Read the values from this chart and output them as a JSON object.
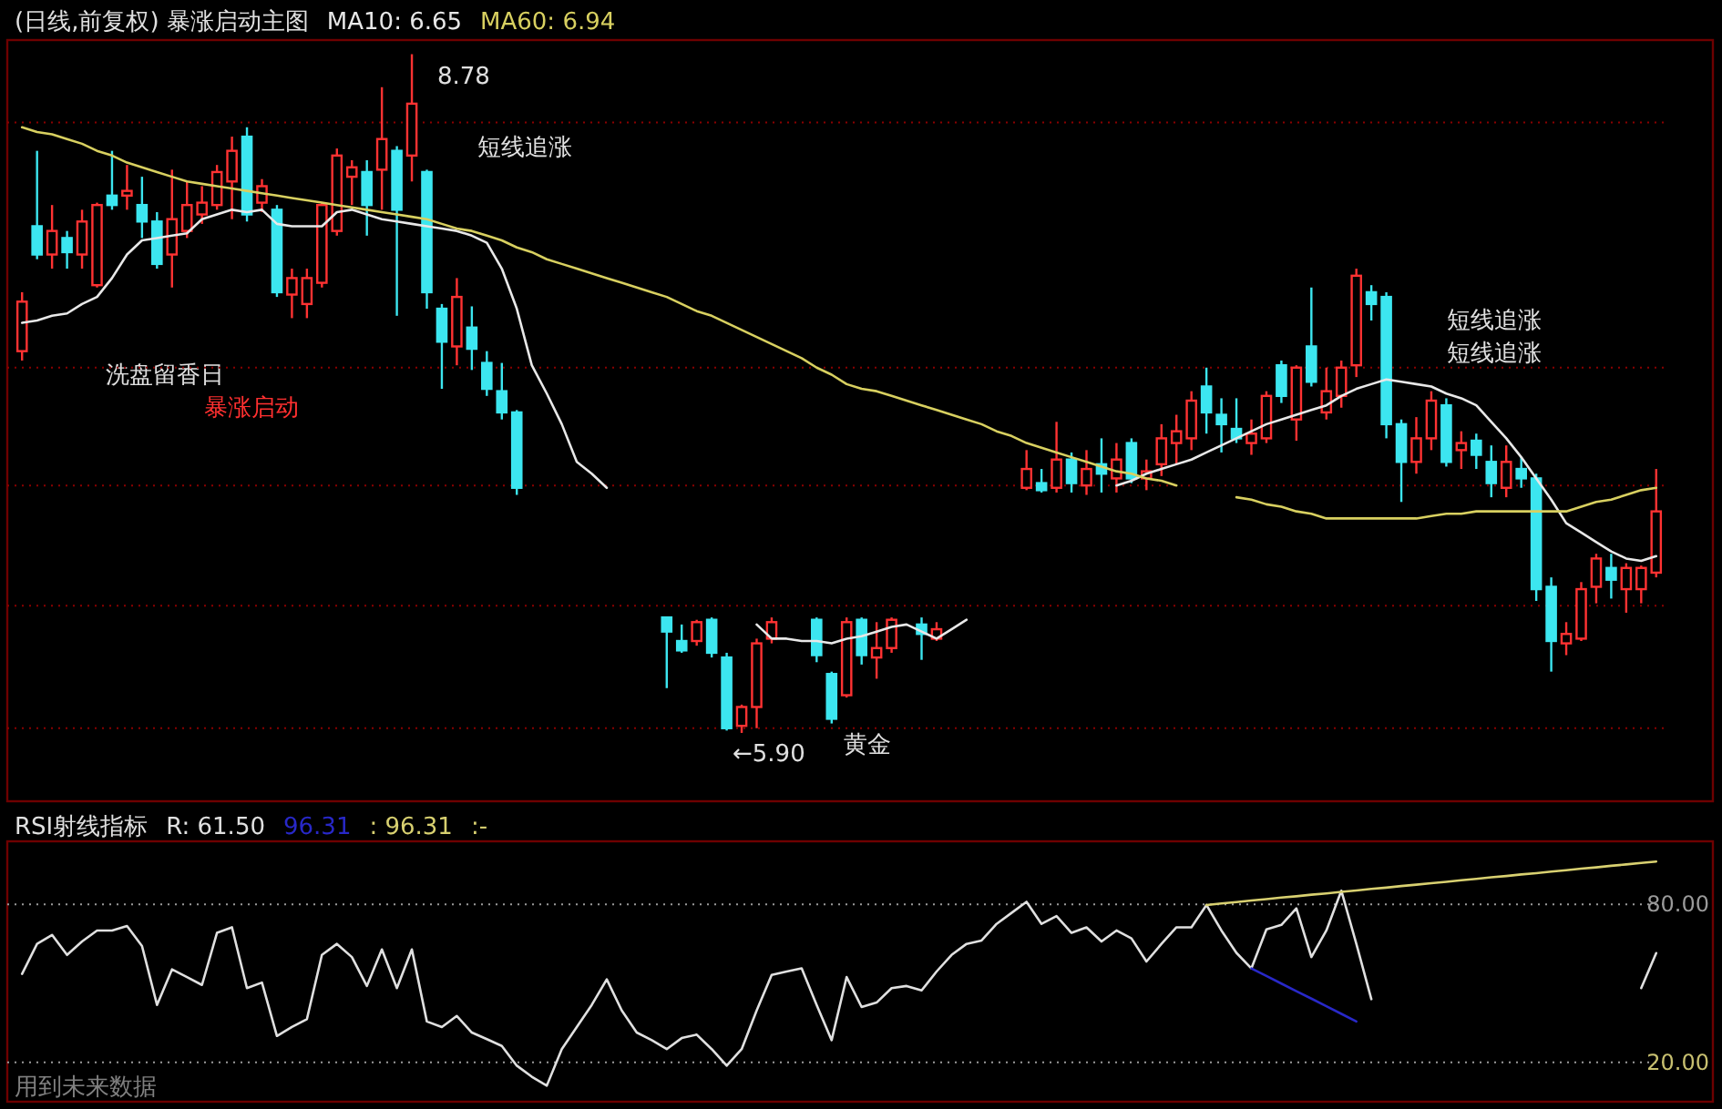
{
  "chart_data": [
    {
      "type": "candlestick",
      "title": "(日线,前复权) 暴涨启动主图",
      "categories": [
        null,
        null,
        null,
        null,
        null,
        null,
        null,
        null,
        null,
        null,
        null,
        null,
        null,
        null,
        null,
        null,
        null,
        null,
        null,
        null,
        null,
        null,
        null,
        null,
        null,
        null,
        null,
        null,
        null,
        null,
        null,
        null,
        null,
        null,
        null,
        null,
        null,
        null,
        null,
        null,
        null,
        null,
        null,
        null,
        null,
        null,
        null,
        null,
        null,
        null,
        null,
        null,
        null,
        null,
        null,
        null,
        null,
        null,
        null,
        null,
        null,
        null,
        null,
        null,
        null,
        null,
        null,
        null,
        null,
        null,
        null,
        null,
        null,
        null,
        null,
        null,
        null,
        null,
        null,
        null,
        null,
        null,
        null,
        null,
        null,
        null,
        null,
        null,
        null,
        null,
        null,
        null,
        null,
        null,
        null,
        null,
        null,
        null,
        null,
        null,
        null,
        null,
        null,
        null,
        null,
        null,
        null,
        null,
        null,
        null
      ],
      "ohlc": [
        [
          7.52,
          7.77,
          7.48,
          7.73
        ],
        [
          8.05,
          8.37,
          7.91,
          7.93
        ],
        [
          7.93,
          8.14,
          7.87,
          8.03
        ],
        [
          8.0,
          8.03,
          7.87,
          7.94
        ],
        [
          7.93,
          8.12,
          7.87,
          8.07
        ],
        [
          7.8,
          8.15,
          7.79,
          8.14
        ],
        [
          8.18,
          8.37,
          8.12,
          8.14
        ],
        [
          8.18,
          8.31,
          8.12,
          8.2
        ],
        [
          8.14,
          8.26,
          8.0,
          8.07
        ],
        [
          8.07,
          8.11,
          7.87,
          7.89
        ],
        [
          7.93,
          8.29,
          7.79,
          8.08
        ],
        [
          8.03,
          8.24,
          8.0,
          8.14
        ],
        [
          8.1,
          8.22,
          8.06,
          8.15
        ],
        [
          8.14,
          8.31,
          8.12,
          8.28
        ],
        [
          8.24,
          8.43,
          8.08,
          8.37
        ],
        [
          8.43,
          8.47,
          8.07,
          8.1
        ],
        [
          8.15,
          8.25,
          8.11,
          8.22
        ],
        [
          8.12,
          8.14,
          7.75,
          7.77
        ],
        [
          7.76,
          7.87,
          7.66,
          7.83
        ],
        [
          7.72,
          7.87,
          7.66,
          7.83
        ],
        [
          7.81,
          8.15,
          7.79,
          8.14
        ],
        [
          8.03,
          8.38,
          8.01,
          8.35
        ],
        [
          8.26,
          8.33,
          8.14,
          8.3
        ],
        [
          8.28,
          8.33,
          8.01,
          8.14
        ],
        [
          8.29,
          8.64,
          8.12,
          8.42
        ],
        [
          8.37,
          8.39,
          7.67,
          8.12
        ],
        [
          8.35,
          8.78,
          8.24,
          8.57
        ],
        [
          8.28,
          8.29,
          7.7,
          7.77
        ],
        [
          7.7,
          7.72,
          7.36,
          7.56
        ],
        [
          7.54,
          7.83,
          7.46,
          7.75
        ],
        [
          7.62,
          7.71,
          7.44,
          7.53
        ],
        [
          7.47,
          7.52,
          7.33,
          7.36
        ],
        [
          7.35,
          7.47,
          7.23,
          7.26
        ],
        [
          7.26,
          7.27,
          6.91,
          6.94
        ],
        null,
        null,
        null,
        null,
        null,
        null,
        null,
        null,
        null,
        [
          6.39,
          6.39,
          6.09,
          6.33
        ],
        [
          6.29,
          6.36,
          6.24,
          6.25
        ],
        [
          6.29,
          6.38,
          6.27,
          6.37
        ],
        [
          6.38,
          6.39,
          6.22,
          6.24
        ],
        [
          6.22,
          6.24,
          5.91,
          5.92
        ],
        [
          5.93,
          6.02,
          5.9,
          6.01
        ],
        [
          6.01,
          6.3,
          5.92,
          6.28
        ],
        [
          6.3,
          6.39,
          6.28,
          6.37
        ],
        null,
        null,
        [
          6.38,
          6.39,
          6.2,
          6.23
        ],
        [
          6.15,
          6.16,
          5.94,
          5.96
        ],
        [
          6.06,
          6.39,
          6.05,
          6.37
        ],
        [
          6.38,
          6.39,
          6.19,
          6.23
        ],
        [
          6.22,
          6.37,
          6.13,
          6.26
        ],
        [
          6.26,
          6.39,
          6.24,
          6.38
        ],
        null,
        [
          6.36,
          6.39,
          6.21,
          6.32
        ],
        [
          6.3,
          6.37,
          6.29,
          6.34
        ],
        null,
        null,
        null,
        null,
        null,
        [
          6.94,
          7.1,
          6.93,
          7.02
        ],
        [
          6.96,
          7.02,
          6.92,
          6.93
        ],
        [
          6.94,
          7.22,
          6.92,
          7.06
        ],
        [
          7.06,
          7.09,
          6.92,
          6.96
        ],
        [
          6.95,
          7.1,
          6.91,
          7.02
        ],
        [
          7.04,
          7.15,
          6.92,
          7.0
        ],
        [
          6.98,
          7.13,
          6.92,
          7.06
        ],
        [
          7.13,
          7.15,
          6.96,
          6.98
        ],
        [
          6.98,
          7.06,
          6.93,
          7.01
        ],
        [
          7.04,
          7.21,
          6.99,
          7.15
        ],
        [
          7.13,
          7.25,
          7.04,
          7.18
        ],
        [
          7.15,
          7.35,
          7.1,
          7.31
        ],
        [
          7.37,
          7.45,
          7.17,
          7.26
        ],
        [
          7.25,
          7.32,
          7.09,
          7.21
        ],
        [
          7.19,
          7.32,
          7.13,
          7.15
        ],
        [
          7.13,
          7.23,
          7.08,
          7.17
        ],
        [
          7.15,
          7.35,
          7.13,
          7.33
        ],
        [
          7.46,
          7.48,
          7.3,
          7.33
        ],
        [
          7.23,
          7.46,
          7.14,
          7.45
        ],
        [
          7.54,
          7.79,
          7.37,
          7.39
        ],
        [
          7.26,
          7.45,
          7.23,
          7.35
        ],
        [
          7.33,
          7.48,
          7.28,
          7.45
        ],
        [
          7.46,
          7.87,
          7.41,
          7.84
        ],
        [
          7.77,
          7.8,
          7.65,
          7.72
        ],
        [
          7.75,
          7.77,
          7.15,
          7.21
        ],
        [
          7.21,
          7.23,
          6.88,
          7.05
        ],
        [
          7.05,
          7.24,
          7.0,
          7.15
        ],
        [
          7.15,
          7.35,
          7.1,
          7.31
        ],
        [
          7.29,
          7.32,
          7.03,
          7.05
        ],
        [
          7.1,
          7.18,
          7.02,
          7.13
        ],
        [
          7.14,
          7.17,
          7.02,
          7.08
        ],
        [
          7.05,
          7.12,
          6.9,
          6.96
        ],
        [
          6.94,
          7.12,
          6.9,
          7.05
        ],
        [
          7.02,
          7.07,
          6.94,
          6.98
        ],
        [
          6.98,
          7.0,
          6.46,
          6.51
        ],
        [
          6.52,
          6.56,
          6.16,
          6.29
        ],
        [
          6.28,
          6.37,
          6.23,
          6.32
        ],
        [
          6.3,
          6.54,
          6.29,
          6.51
        ],
        [
          6.52,
          6.66,
          6.45,
          6.64
        ],
        [
          6.6,
          6.66,
          6.47,
          6.55
        ],
        [
          6.51,
          6.62,
          6.41,
          6.6
        ],
        [
          6.51,
          6.61,
          6.45,
          6.6
        ],
        [
          6.58,
          7.02,
          6.56,
          6.84
        ]
      ],
      "series": [
        {
          "name": "MA10: 6.65",
          "type": "line",
          "color": "#e8e8e8",
          "values": [
            7.64,
            7.65,
            7.67,
            7.68,
            7.72,
            7.75,
            7.83,
            7.93,
            7.99,
            8.0,
            8.01,
            8.02,
            8.08,
            8.1,
            8.12,
            8.11,
            8.12,
            8.06,
            8.05,
            8.05,
            8.05,
            8.11,
            8.12,
            8.1,
            8.08,
            8.07,
            8.06,
            8.05,
            8.04,
            8.03,
            8.01,
            7.98,
            7.87,
            7.7,
            7.46,
            7.34,
            7.21,
            7.05,
            7.0,
            6.94,
            null,
            null,
            null,
            null,
            null,
            null,
            null,
            null,
            null,
            6.36,
            6.3,
            6.3,
            6.29,
            6.29,
            6.28,
            6.3,
            6.31,
            6.33,
            6.35,
            6.36,
            6.33,
            6.3,
            6.34,
            6.38,
            null,
            null,
            null,
            null,
            null,
            null,
            null,
            null,
            null,
            6.95,
            6.97,
            7.0,
            7.02,
            7.04,
            7.06,
            7.09,
            7.12,
            7.15,
            7.18,
            7.21,
            7.23,
            7.25,
            7.27,
            7.29,
            7.33,
            7.36,
            7.38,
            7.4,
            7.39,
            7.38,
            7.37,
            7.34,
            7.32,
            7.29,
            7.22,
            7.15,
            7.07,
            6.98,
            6.89,
            6.79,
            6.75,
            6.71,
            6.67,
            6.64,
            6.63,
            6.65
          ]
        },
        {
          "name": "MA60: 6.94",
          "type": "line",
          "color": "#d8d060",
          "values": [
            8.47,
            8.45,
            8.44,
            8.42,
            8.4,
            8.37,
            8.35,
            8.32,
            8.3,
            8.28,
            8.26,
            8.24,
            8.23,
            8.22,
            8.21,
            8.2,
            8.19,
            8.18,
            8.17,
            8.16,
            8.15,
            8.14,
            8.13,
            8.12,
            8.11,
            8.1,
            8.09,
            8.08,
            8.06,
            8.04,
            8.03,
            8.01,
            7.99,
            7.96,
            7.94,
            7.91,
            7.89,
            7.87,
            7.85,
            7.83,
            7.81,
            7.79,
            7.77,
            7.75,
            7.72,
            7.69,
            7.67,
            7.64,
            7.61,
            7.58,
            7.55,
            7.52,
            7.49,
            7.45,
            7.42,
            7.38,
            7.36,
            7.35,
            7.33,
            7.31,
            7.29,
            7.27,
            7.25,
            7.23,
            7.21,
            7.18,
            7.16,
            7.13,
            7.11,
            7.09,
            7.07,
            7.05,
            7.03,
            7.01,
            7.0,
            6.98,
            6.97,
            6.95,
            null,
            null,
            null,
            6.9,
            6.89,
            6.87,
            6.86,
            6.84,
            6.83,
            6.81,
            6.81,
            6.81,
            6.81,
            6.81,
            6.81,
            6.81,
            6.82,
            6.83,
            6.83,
            6.84,
            6.84,
            6.84,
            6.84,
            6.84,
            6.84,
            6.84,
            6.86,
            6.88,
            6.89,
            6.91,
            6.93,
            6.94
          ]
        }
      ],
      "ylim": [
        5.61,
        8.84
      ],
      "yticks": [
        {
          "value": 8.49,
          "label": null
        },
        {
          "value": 7.45,
          "label": null
        },
        {
          "value": 6.95,
          "label": null
        },
        {
          "value": 6.44,
          "label": null
        },
        {
          "value": 5.92,
          "label": null
        }
      ],
      "grid": "y",
      "annotations": [
        "8.78",
        "←5.90",
        "黄金",
        "洗盘留香日",
        "暴涨启动",
        "短线追涨",
        "短线追涨",
        "短线追涨"
      ]
    },
    {
      "type": "line",
      "title": "RSI射线指标",
      "categories": [
        null,
        null,
        null,
        null,
        null,
        null,
        null,
        null,
        null,
        null,
        null,
        null,
        null,
        null,
        null,
        null,
        null,
        null,
        null,
        null,
        null,
        null,
        null,
        null,
        null,
        null,
        null,
        null,
        null,
        null,
        null,
        null,
        null,
        null,
        null,
        null,
        null,
        null,
        null,
        null,
        null,
        null,
        null,
        null,
        null,
        null,
        null,
        null,
        null,
        null,
        null,
        null,
        null,
        null,
        null,
        null,
        null,
        null,
        null,
        null,
        null,
        null,
        null,
        null,
        null,
        null,
        null,
        null,
        null,
        null,
        null,
        null,
        null,
        null,
        null,
        null,
        null,
        null,
        null,
        null,
        null,
        null,
        null,
        null,
        null,
        null,
        null,
        null,
        null,
        null,
        null,
        null,
        null,
        null,
        null,
        null,
        null,
        null,
        null,
        null,
        null,
        null,
        null,
        null,
        null,
        null,
        null,
        null,
        null,
        null
      ],
      "series": [
        {
          "name": "R: 61.50",
          "color": "#e0e0e0",
          "values": [
            53.6,
            65.0,
            68.4,
            60.8,
            65.9,
            70.1,
            70.1,
            71.8,
            64.2,
            41.8,
            55.3,
            52.4,
            49.4,
            69.2,
            71.3,
            48.2,
            50.3,
            30.0,
            33.4,
            36.4,
            60.8,
            65.0,
            60.0,
            49.0,
            62.9,
            48.2,
            62.9,
            35.5,
            33.4,
            37.6,
            31.3,
            28.8,
            26.2,
            18.7,
            14.5,
            11.1,
            25.0,
            33.4,
            41.8,
            51.5,
            39.7,
            31.3,
            28.4,
            25.0,
            29.2,
            30.5,
            25.0,
            18.7,
            25.0,
            39.7,
            53.2,
            54.5,
            55.7,
            41.8,
            28.4,
            52.4,
            41.0,
            42.7,
            48.2,
            49.0,
            47.3,
            54.5,
            60.8,
            65.0,
            66.3,
            72.6,
            76.8,
            81.0,
            72.6,
            75.6,
            69.2,
            71.3,
            65.9,
            70.1,
            67.1,
            58.3,
            65.0,
            71.3,
            71.3,
            79.8,
            70.1,
            61.6,
            55.7,
            70.5,
            72.2,
            78.5,
            60.0,
            70.1,
            85.2,
            65.0,
            44.0,
            null,
            null,
            null,
            null,
            null,
            null,
            null,
            null,
            null,
            null,
            null,
            null,
            null,
            null,
            null,
            null,
            null,
            48.2,
            61.5
          ]
        },
        {
          "name": "96.31",
          "color": "#2828c8",
          "values": [
            null,
            null,
            null,
            null,
            null,
            null,
            null,
            null,
            null,
            null,
            null,
            null,
            null,
            null,
            null,
            null,
            null,
            null,
            null,
            null,
            null,
            null,
            null,
            null,
            null,
            null,
            null,
            null,
            null,
            null,
            null,
            null,
            null,
            null,
            null,
            null,
            null,
            null,
            null,
            null,
            null,
            null,
            null,
            null,
            null,
            null,
            null,
            null,
            null,
            null,
            null,
            null,
            null,
            null,
            null,
            null,
            null,
            null,
            null,
            null,
            null,
            null,
            null,
            null,
            null,
            null,
            null,
            null,
            null,
            null,
            null,
            null,
            null,
            null,
            null,
            null,
            null,
            null,
            null,
            null,
            null,
            null,
            55.7,
            52.8,
            49.9,
            47.0,
            44.2,
            41.3,
            38.4,
            35.5,
            null,
            null,
            null,
            null,
            null,
            null,
            null,
            null,
            null,
            null,
            null,
            null,
            null,
            null,
            null,
            null,
            null,
            null,
            null,
            null
          ]
        },
        {
          "name": ": 96.31",
          "color": "#d8d070",
          "values": [
            null,
            null,
            null,
            null,
            null,
            null,
            null,
            null,
            null,
            null,
            null,
            null,
            null,
            null,
            null,
            null,
            null,
            null,
            null,
            null,
            null,
            null,
            null,
            null,
            null,
            null,
            null,
            null,
            null,
            null,
            null,
            null,
            null,
            null,
            null,
            null,
            null,
            null,
            null,
            null,
            null,
            null,
            null,
            null,
            null,
            null,
            null,
            null,
            null,
            null,
            null,
            null,
            null,
            null,
            null,
            null,
            null,
            null,
            null,
            null,
            null,
            null,
            null,
            null,
            null,
            null,
            null,
            null,
            null,
            null,
            null,
            null,
            null,
            null,
            null,
            null,
            null,
            null,
            null,
            79.8,
            80.4,
            80.9,
            81.5,
            82.0,
            82.6,
            83.1,
            83.7,
            84.2,
            84.8,
            85.3,
            85.9,
            86.4,
            87.0,
            87.5,
            88.1,
            88.6,
            89.2,
            89.7,
            90.3,
            90.8,
            91.4,
            91.9,
            92.5,
            93.0,
            93.6,
            94.1,
            94.7,
            95.2,
            95.8,
            96.31
          ]
        }
      ],
      "ylim": [
        5,
        104
      ],
      "yticks": [
        {
          "value": 80,
          "label": "80.00"
        },
        {
          "value": 20,
          "label": "20.00"
        }
      ],
      "grid": "y",
      "annotations": [
        ":-",
        "用到未来数据"
      ]
    }
  ]
}
